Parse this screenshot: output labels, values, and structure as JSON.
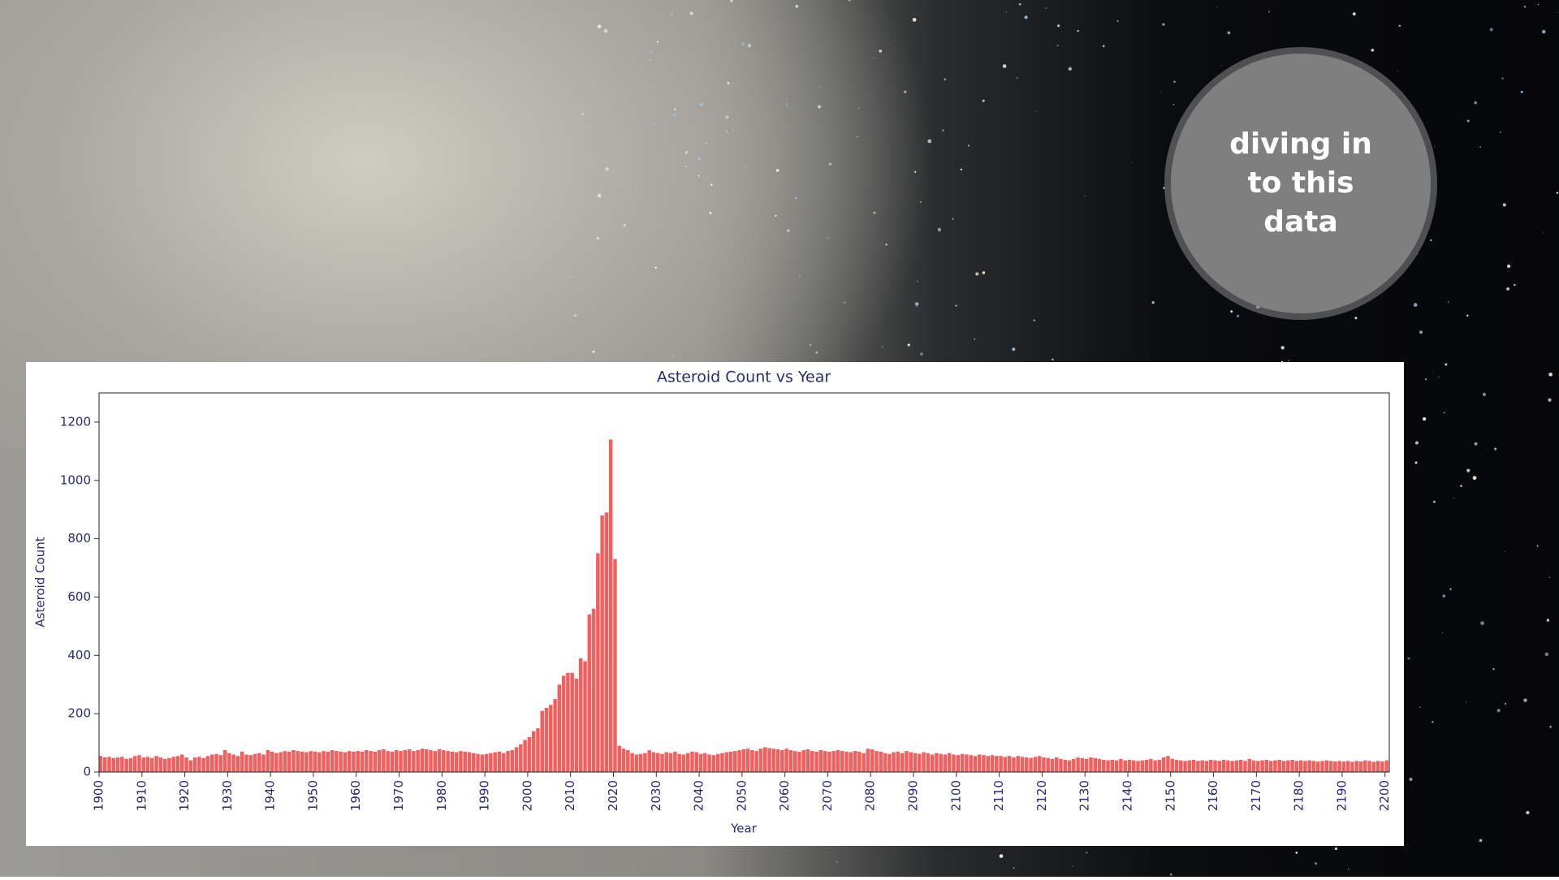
{
  "slide": {
    "callout": "diving in to this data"
  },
  "chart_data": {
    "type": "bar",
    "title": "Asteroid Count vs Year",
    "xlabel": "Year",
    "ylabel": "Asteroid Count",
    "color": "#f25f5f",
    "x": [
      1900,
      1901,
      1902,
      1903,
      1904,
      1905,
      1906,
      1907,
      1908,
      1909,
      1910,
      1911,
      1912,
      1913,
      1914,
      1915,
      1916,
      1917,
      1918,
      1919,
      1920,
      1921,
      1922,
      1923,
      1924,
      1925,
      1926,
      1927,
      1928,
      1929,
      1930,
      1931,
      1932,
      1933,
      1934,
      1935,
      1936,
      1937,
      1938,
      1939,
      1940,
      1941,
      1942,
      1943,
      1944,
      1945,
      1946,
      1947,
      1948,
      1949,
      1950,
      1951,
      1952,
      1953,
      1954,
      1955,
      1956,
      1957,
      1958,
      1959,
      1960,
      1961,
      1962,
      1963,
      1964,
      1965,
      1966,
      1967,
      1968,
      1969,
      1970,
      1971,
      1972,
      1973,
      1974,
      1975,
      1976,
      1977,
      1978,
      1979,
      1980,
      1981,
      1982,
      1983,
      1984,
      1985,
      1986,
      1987,
      1988,
      1989,
      1990,
      1991,
      1992,
      1993,
      1994,
      1995,
      1996,
      1997,
      1998,
      1999,
      2000,
      2001,
      2002,
      2003,
      2004,
      2005,
      2006,
      2007,
      2008,
      2009,
      2010,
      2011,
      2012,
      2013,
      2014,
      2015,
      2016,
      2017,
      2018,
      2019,
      2020,
      2021,
      2022,
      2023,
      2024,
      2025,
      2026,
      2027,
      2028,
      2029,
      2030,
      2031,
      2032,
      2033,
      2034,
      2035,
      2036,
      2037,
      2038,
      2039,
      2040,
      2041,
      2042,
      2043,
      2044,
      2045,
      2046,
      2047,
      2048,
      2049,
      2050,
      2051,
      2052,
      2053,
      2054,
      2055,
      2056,
      2057,
      2058,
      2059,
      2060,
      2061,
      2062,
      2063,
      2064,
      2065,
      2066,
      2067,
      2068,
      2069,
      2070,
      2071,
      2072,
      2073,
      2074,
      2075,
      2076,
      2077,
      2078,
      2079,
      2080,
      2081,
      2082,
      2083,
      2084,
      2085,
      2086,
      2087,
      2088,
      2089,
      2090,
      2091,
      2092,
      2093,
      2094,
      2095,
      2096,
      2097,
      2098,
      2099,
      2100,
      2101,
      2102,
      2103,
      2104,
      2105,
      2106,
      2107,
      2108,
      2109,
      2110,
      2111,
      2112,
      2113,
      2114,
      2115,
      2116,
      2117,
      2118,
      2119,
      2120,
      2121,
      2122,
      2123,
      2124,
      2125,
      2126,
      2127,
      2128,
      2129,
      2130,
      2131,
      2132,
      2133,
      2134,
      2135,
      2136,
      2137,
      2138,
      2139,
      2140,
      2141,
      2142,
      2143,
      2144,
      2145,
      2146,
      2147,
      2148,
      2149,
      2150,
      2151,
      2152,
      2153,
      2154,
      2155,
      2156,
      2157,
      2158,
      2159,
      2160,
      2161,
      2162,
      2163,
      2164,
      2165,
      2166,
      2167,
      2168,
      2169,
      2170,
      2171,
      2172,
      2173,
      2174,
      2175,
      2176,
      2177,
      2178,
      2179,
      2180,
      2181,
      2182,
      2183,
      2184,
      2185,
      2186,
      2187,
      2188,
      2189,
      2190,
      2191,
      2192,
      2193,
      2194,
      2195,
      2196,
      2197,
      2198,
      2199,
      2200
    ],
    "values": [
      55,
      50,
      52,
      48,
      50,
      52,
      45,
      48,
      55,
      58,
      50,
      52,
      48,
      55,
      50,
      45,
      48,
      52,
      55,
      60,
      50,
      40,
      50,
      52,
      48,
      55,
      60,
      62,
      58,
      75,
      65,
      60,
      55,
      70,
      60,
      58,
      62,
      65,
      60,
      75,
      70,
      65,
      68,
      72,
      70,
      75,
      72,
      70,
      68,
      72,
      70,
      68,
      72,
      70,
      75,
      72,
      70,
      68,
      72,
      70,
      72,
      70,
      75,
      72,
      70,
      75,
      78,
      72,
      70,
      75,
      72,
      75,
      78,
      72,
      75,
      80,
      78,
      75,
      72,
      78,
      75,
      72,
      70,
      68,
      72,
      70,
      68,
      65,
      62,
      60,
      62,
      65,
      68,
      70,
      65,
      72,
      75,
      85,
      95,
      110,
      120,
      140,
      150,
      210,
      220,
      230,
      250,
      300,
      330,
      340,
      340,
      320,
      390,
      380,
      540,
      560,
      750,
      880,
      890,
      1140,
      730,
      90,
      80,
      75,
      65,
      60,
      62,
      65,
      75,
      68,
      65,
      62,
      68,
      65,
      70,
      62,
      60,
      65,
      70,
      68,
      62,
      65,
      60,
      58,
      62,
      65,
      68,
      70,
      72,
      75,
      78,
      80,
      75,
      72,
      80,
      85,
      82,
      80,
      78,
      75,
      80,
      75,
      72,
      70,
      75,
      78,
      72,
      70,
      75,
      72,
      70,
      72,
      75,
      72,
      70,
      68,
      72,
      70,
      65,
      80,
      78,
      72,
      70,
      65,
      62,
      68,
      70,
      65,
      72,
      68,
      65,
      62,
      68,
      65,
      60,
      65,
      62,
      60,
      65,
      60,
      58,
      62,
      60,
      58,
      55,
      60,
      58,
      55,
      58,
      55,
      55,
      52,
      55,
      50,
      55,
      52,
      50,
      48,
      52,
      55,
      50,
      48,
      45,
      50,
      45,
      42,
      40,
      45,
      50,
      48,
      45,
      50,
      48,
      45,
      42,
      40,
      42,
      40,
      45,
      40,
      42,
      40,
      38,
      40,
      42,
      45,
      40,
      42,
      50,
      55,
      45,
      42,
      40,
      38,
      40,
      42,
      38,
      40,
      38,
      42,
      40,
      38,
      42,
      40,
      38,
      40,
      42,
      38,
      45,
      40,
      38,
      40,
      42,
      38,
      40,
      42,
      38,
      40,
      42,
      38,
      40,
      38,
      40,
      38,
      36,
      38,
      40,
      38,
      36,
      38,
      36,
      38,
      35,
      38,
      36,
      40,
      38,
      35,
      38,
      36,
      40
    ],
    "xlim": [
      1900,
      2201
    ],
    "ylim": [
      0,
      1300
    ],
    "xticks": [
      1900,
      1910,
      1920,
      1930,
      1940,
      1950,
      1960,
      1970,
      1980,
      1990,
      2000,
      2010,
      2020,
      2030,
      2040,
      2050,
      2060,
      2070,
      2080,
      2090,
      2100,
      2110,
      2120,
      2130,
      2140,
      2150,
      2160,
      2170,
      2180,
      2190,
      2200
    ],
    "yticks": [
      0,
      200,
      400,
      600,
      800,
      1000,
      1200
    ]
  }
}
